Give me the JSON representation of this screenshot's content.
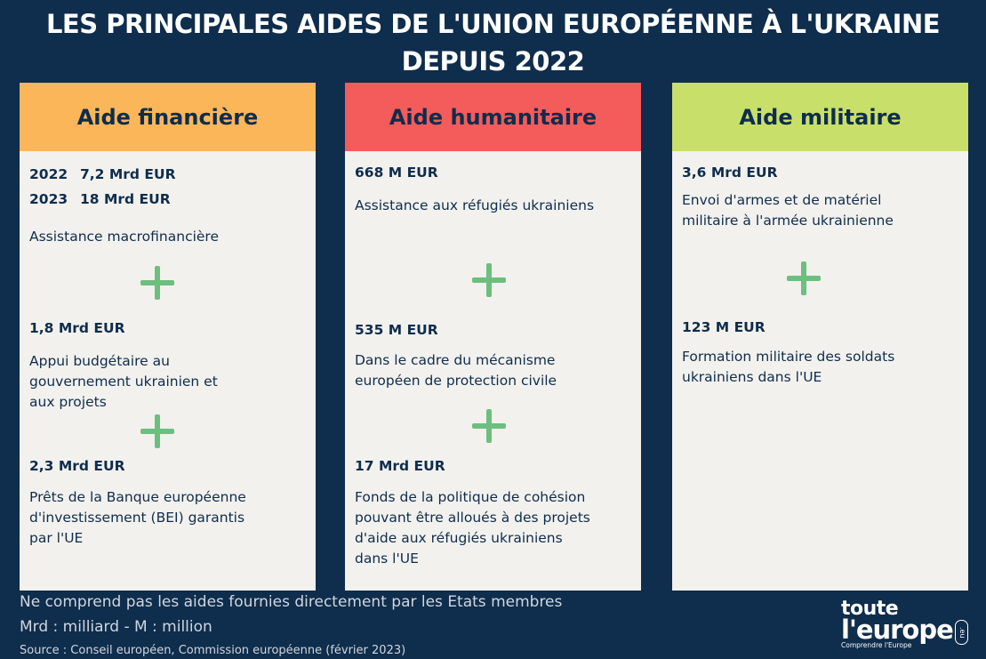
{
  "title": {
    "line1": "LES PRINCIPALES AIDES DE L'UNION EUROPÉENNE À L'UKRAINE",
    "line2": "DEPUIS 2022"
  },
  "colors": {
    "background": "#0f2d4c",
    "financiere": "#fbb65a",
    "humanitaire": "#f45b5b",
    "militaire": "#c8e06a",
    "plus": "#6cbf7e"
  },
  "financiere": {
    "header": "Aide financière",
    "row1_year": "2022",
    "row1_amount": "7,2 Mrd EUR",
    "row2_year": "2023",
    "row2_amount": "18 Mrd EUR",
    "item1_desc": "Assistance macrofinancière",
    "item2_amount": "1,8 Mrd EUR",
    "item2_desc_l1": "Appui budgétaire au",
    "item2_desc_l2": "gouvernement ukrainien et",
    "item2_desc_l3": "aux projets",
    "item3_amount": "2,3 Mrd EUR",
    "item3_desc_l1": "Prêts de la Banque européenne",
    "item3_desc_l2": "d'investissement (BEI) garantis",
    "item3_desc_l3": "par l'UE"
  },
  "humanitaire": {
    "header": "Aide humanitaire",
    "item1_amount": "668 M EUR",
    "item1_desc": "Assistance aux réfugiés ukrainiens",
    "item2_amount": "535 M EUR",
    "item2_desc_l1": "Dans le cadre du mécanisme",
    "item2_desc_l2": "européen de protection civile",
    "item3_amount": "17 Mrd EUR",
    "item3_desc_l1": "Fonds de la politique de cohésion",
    "item3_desc_l2": "pouvant être alloués à des projets",
    "item3_desc_l3": "d'aide aux réfugiés ukrainiens",
    "item3_desc_l4": "dans l'UE"
  },
  "militaire": {
    "header": "Aide militaire",
    "item1_amount": "3,6 Mrd EUR",
    "item1_desc_l1": "Envoi d'armes et de matériel",
    "item1_desc_l2": "militaire à l'armée ukrainienne",
    "item2_amount": "123 M EUR",
    "item2_desc_l1": "Formation militaire des soldats",
    "item2_desc_l2": "ukrainiens dans l'UE"
  },
  "footer": {
    "note": "Ne comprend pas les aides fournies directement par les Etats membres",
    "legend": "Mrd : milliard - M : million",
    "source": "Source : Conseil européen, Commission européenne (février 2023)"
  },
  "logo": {
    "line1": "toute",
    "line2": "l'europe",
    "tagline": "Comprendre l'Europe",
    "tld": ".eu"
  }
}
